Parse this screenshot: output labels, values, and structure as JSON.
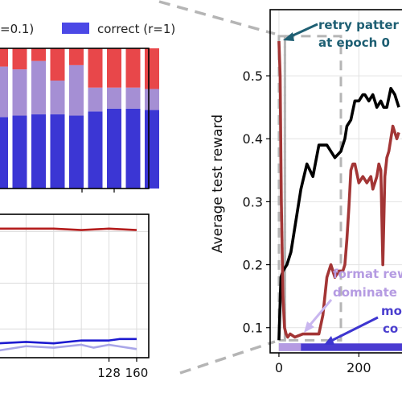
{
  "colors": {
    "red": "#e8474a",
    "lavender": "#a58fd4",
    "blue": "#3b36d4",
    "dark_red": "#a33535",
    "black": "#000000",
    "teal": "#1e5f73",
    "lilac_text": "#b59be2",
    "indigo_text": "#4b3fcf",
    "dash": "#b5b5b5"
  },
  "legend": {
    "partial_label": "=0.1)",
    "correct_label": "correct (r=1)"
  },
  "chart_data": [
    {
      "type": "bar",
      "title": "",
      "stacked": true,
      "series": [
        {
          "name": "correct (r=1)",
          "color": "#3b36d4",
          "values": [
            0.51,
            0.52,
            0.53,
            0.53,
            0.52,
            0.55,
            0.57,
            0.57,
            0.56
          ]
        },
        {
          "name": "",
          "color": "#a58fd4",
          "values": [
            0.36,
            0.33,
            0.38,
            0.24,
            0.36,
            0.17,
            0.15,
            0.15,
            0.15
          ]
        },
        {
          "name": "",
          "color": "#e8474a",
          "values": [
            0.13,
            0.15,
            0.09,
            0.23,
            0.12,
            0.28,
            0.28,
            0.28,
            0.29
          ]
        }
      ],
      "ylim": [
        0,
        1
      ]
    },
    {
      "type": "line",
      "title": "",
      "xticks": [
        "128",
        "160"
      ],
      "xlim": [
        0,
        174
      ],
      "ylim": [
        0,
        1
      ],
      "grid": true,
      "series": [
        {
          "name": "",
          "color": "#b41c1c",
          "x": [
            0,
            32,
            64,
            96,
            128,
            160
          ],
          "y": [
            0.9,
            0.9,
            0.9,
            0.89,
            0.9,
            0.89
          ]
        },
        {
          "name": "",
          "color": "#1d1ad0",
          "x": [
            0,
            32,
            64,
            96,
            128,
            140,
            160
          ],
          "y": [
            0.1,
            0.11,
            0.1,
            0.12,
            0.12,
            0.13,
            0.13
          ]
        },
        {
          "name": "",
          "color": "#a9a6e8",
          "x": [
            0,
            32,
            64,
            96,
            110,
            128,
            160
          ],
          "y": [
            0.05,
            0.08,
            0.07,
            0.09,
            0.07,
            0.09,
            0.06
          ]
        }
      ]
    },
    {
      "type": "line",
      "title": "",
      "xlabel": "",
      "ylabel": "Average test reward",
      "xlim": [
        -22,
        320
      ],
      "ylim": [
        0.06,
        0.605
      ],
      "xticks": [
        0,
        200
      ],
      "yticks": [
        0.1,
        0.2,
        0.3,
        0.4,
        0.5
      ],
      "ytick_labels": [
        "0.1",
        "0.2",
        "0.3",
        "0.4",
        "0.5"
      ],
      "xtick_labels": [
        "0",
        "200"
      ],
      "grid": true,
      "series": [
        {
          "name": "",
          "color": "#000000",
          "x": [
            0,
            5,
            10,
            20,
            30,
            40,
            55,
            70,
            85,
            100,
            120,
            140,
            155,
            165,
            170,
            180,
            190,
            200,
            210,
            215,
            225,
            235,
            245,
            255,
            262,
            270,
            280,
            290,
            300
          ],
          "y": [
            0.08,
            0.18,
            0.19,
            0.2,
            0.22,
            0.26,
            0.32,
            0.36,
            0.34,
            0.39,
            0.39,
            0.37,
            0.38,
            0.4,
            0.42,
            0.43,
            0.46,
            0.46,
            0.47,
            0.47,
            0.46,
            0.47,
            0.45,
            0.46,
            0.45,
            0.45,
            0.48,
            0.47,
            0.45
          ]
        },
        {
          "name": "",
          "color": "#a33535",
          "x": [
            0,
            3,
            6,
            10,
            14,
            18,
            22,
            28,
            40,
            60,
            80,
            100,
            110,
            120,
            130,
            140,
            150,
            160,
            165,
            170,
            175,
            180,
            185,
            190,
            200,
            210,
            220,
            230,
            235,
            240,
            245,
            250,
            255,
            260,
            265,
            270,
            275,
            280,
            285,
            290,
            295,
            300
          ],
          "y": [
            0.555,
            0.5,
            0.3,
            0.15,
            0.1,
            0.09,
            0.085,
            0.09,
            0.085,
            0.09,
            0.09,
            0.09,
            0.12,
            0.18,
            0.2,
            0.18,
            0.19,
            0.19,
            0.2,
            0.24,
            0.29,
            0.35,
            0.36,
            0.36,
            0.33,
            0.34,
            0.33,
            0.34,
            0.32,
            0.33,
            0.34,
            0.36,
            0.35,
            0.2,
            0.34,
            0.37,
            0.38,
            0.4,
            0.42,
            0.41,
            0.4,
            0.41
          ]
        }
      ],
      "bottom_band": {
        "color": "#4a3bd1",
        "x": [
          0,
          320
        ]
      }
    }
  ],
  "annotations": {
    "retry_line1": "retry patter",
    "retry_line2": "at epoch 0",
    "format_line1": "format rew",
    "format_line2": "dominate",
    "mo_line1": "mo",
    "mo_line2": "co"
  }
}
